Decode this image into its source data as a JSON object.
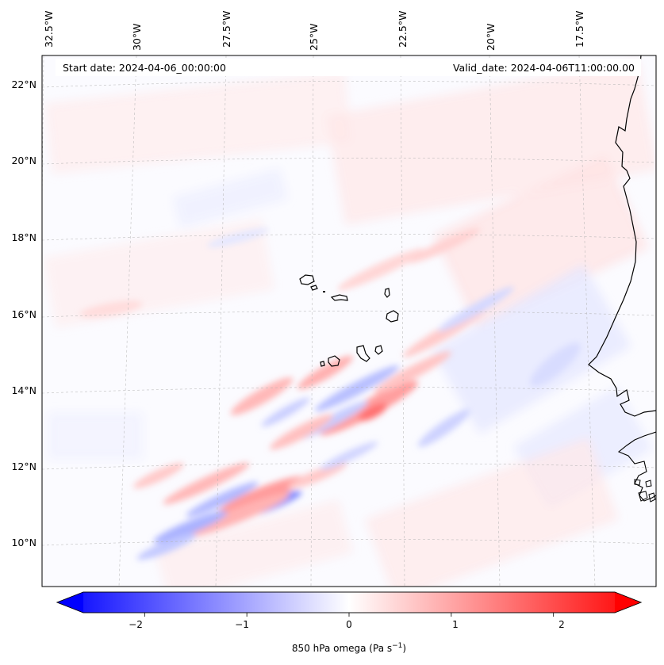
{
  "map": {
    "start_date_text": "Start date: 2024-04-06_00:00:00",
    "valid_date_text": "Valid_date: 2024-04-06T11:00:00.00",
    "longitude_labels": [
      "32.5°W",
      "30°W",
      "27.5°W",
      "25°W",
      "22.5°W",
      "20°W",
      "17.5°W"
    ],
    "latitude_labels": [
      "22°N",
      "20°N",
      "18°N",
      "16°N",
      "14°N",
      "12°N",
      "10°N"
    ],
    "field": "850 hPa omega",
    "islands": [
      "Santo Antão",
      "São Vicente",
      "São Nicolau",
      "Sal",
      "Boa Vista",
      "Santiago",
      "Fogo",
      "Brava",
      "Maio"
    ]
  },
  "colorbar": {
    "label_main": "850 hPa omega (Pa s",
    "label_sup": "−1",
    "label_end": ")",
    "tick_labels": [
      "−2",
      "−1",
      "0",
      "1",
      "2"
    ],
    "tick_values": [
      -2,
      -1,
      0,
      1,
      2
    ],
    "range": [
      -2.6,
      2.6
    ],
    "min_color": "#0000ff",
    "mid_color": "#ffffff",
    "max_color": "#ff0000"
  }
}
